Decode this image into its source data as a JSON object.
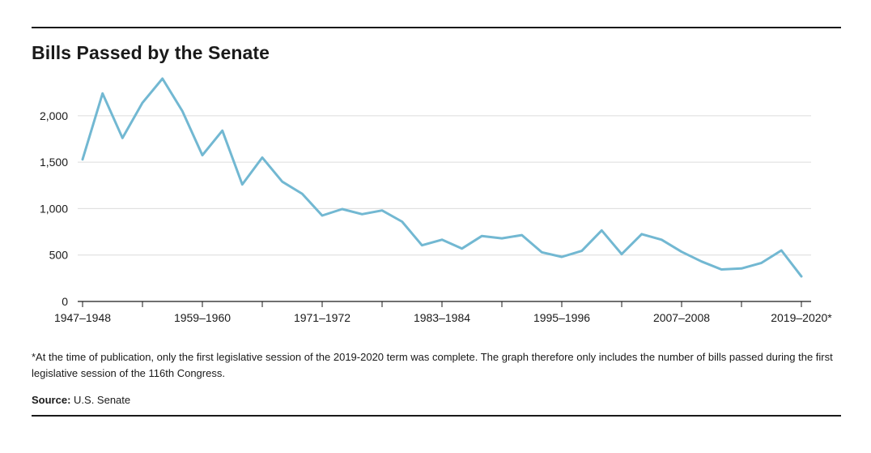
{
  "title": "Bills Passed by the Senate",
  "footnote": "*At the time of publication, only the first legislative session of the 2019-2020 term was complete. The graph therefore only includes the number of bills passed during the first legislative session of the 116th Congress.",
  "source": {
    "label": "Source:",
    "text": "U.S. Senate"
  },
  "colors": {
    "line": "#72b8d2",
    "grid": "#dcdcdc",
    "axis": "#1a1a1a",
    "rule": "#1a1a1a"
  },
  "chart_data": {
    "type": "line",
    "title": "Bills Passed by the Senate",
    "xlabel": "",
    "ylabel": "",
    "ylim": [
      0,
      2400
    ],
    "yticks": [
      0,
      500,
      1000,
      1500,
      2000
    ],
    "ytick_labels": [
      "0",
      "500",
      "1,000",
      "1,500",
      "2,000"
    ],
    "grid": true,
    "x_labeled_ticks": [
      {
        "index": 0,
        "label": "1947–1948"
      },
      {
        "index": 6,
        "label": "1959–1960"
      },
      {
        "index": 12,
        "label": "1971–1972"
      },
      {
        "index": 18,
        "label": "1983–1984"
      },
      {
        "index": 24,
        "label": "1995–1996"
      },
      {
        "index": 30,
        "label": "2007–2008"
      },
      {
        "index": 36,
        "label": "2019–2020*"
      }
    ],
    "x_minor_tick_indices": [
      3,
      9,
      15,
      21,
      27,
      33
    ],
    "x": [
      "1947–1948",
      "1949–1950",
      "1951–1952",
      "1953–1954",
      "1955–1956",
      "1957–1958",
      "1959–1960",
      "1961–1962",
      "1963–1964",
      "1965–1966",
      "1967–1968",
      "1969–1970",
      "1971–1972",
      "1973–1974",
      "1975–1976",
      "1977–1978",
      "1979–1980",
      "1981–1982",
      "1983–1984",
      "1985–1986",
      "1987–1988",
      "1989–1990",
      "1991–1992",
      "1993–1994",
      "1995–1996",
      "1997–1998",
      "1999–2000",
      "2001–2002",
      "2003–2004",
      "2005–2006",
      "2007–2008",
      "2009–2010",
      "2011–2012",
      "2013–2014",
      "2015–2016",
      "2017–2018",
      "2019–2020*"
    ],
    "series": [
      {
        "values": [
          1530,
          2240,
          1760,
          2140,
          2400,
          2050,
          1575,
          1840,
          1260,
          1550,
          1290,
          1160,
          925,
          995,
          940,
          980,
          860,
          605,
          665,
          570,
          705,
          680,
          715,
          530,
          480,
          545,
          765,
          510,
          725,
          665,
          535,
          430,
          345,
          355,
          415,
          550,
          270
        ]
      }
    ]
  }
}
